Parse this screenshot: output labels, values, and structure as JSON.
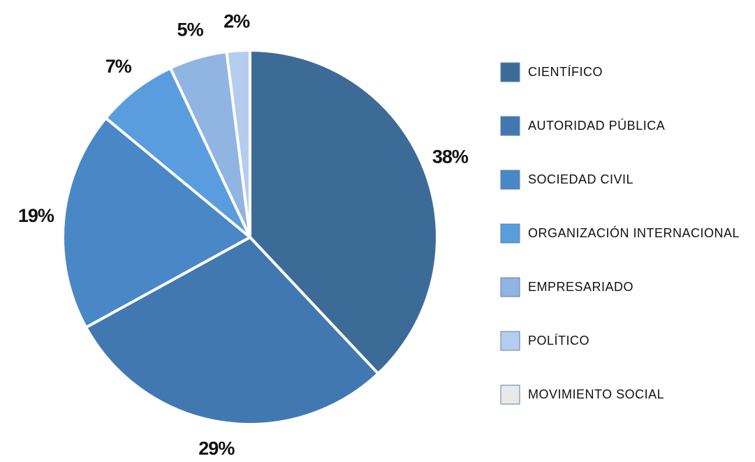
{
  "chart_data": {
    "type": "pie",
    "categories": [
      "CIENTÍFICO",
      "AUTORIDAD PÚBLICA",
      "SOCIEDAD CIVIL",
      "ORGANIZACIÓN INTERNACIONAL",
      "EMPRESARIADO",
      "POLÍTICO",
      "MOVIMIENTO SOCIAL"
    ],
    "values": [
      38,
      29,
      19,
      7,
      5,
      2,
      0
    ],
    "value_labels": [
      "38%",
      "29%",
      "19%",
      "7%",
      "5%",
      "2%",
      null
    ],
    "colors": [
      "#3d6b98",
      "#4278b2",
      "#4a87c6",
      "#5a9ddf",
      "#91b5e2",
      "#b4cdee",
      "#e9e9e9"
    ],
    "legend": "right"
  }
}
